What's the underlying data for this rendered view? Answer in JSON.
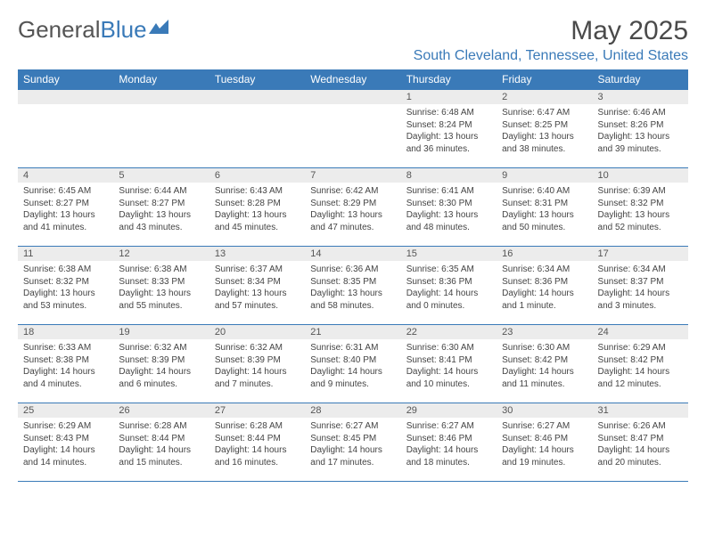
{
  "brand": {
    "part1": "General",
    "part2": "Blue"
  },
  "title": "May 2025",
  "location": "South Cleveland, Tennessee, United States",
  "colors": {
    "header_bg": "#3a7ab8",
    "header_fg": "#ffffff",
    "daynum_bg": "#ececec",
    "border": "#3a7ab8",
    "text": "#444444",
    "title": "#4a4a4a"
  },
  "weekdays": [
    "Sunday",
    "Monday",
    "Tuesday",
    "Wednesday",
    "Thursday",
    "Friday",
    "Saturday"
  ],
  "weeks": [
    [
      null,
      null,
      null,
      null,
      {
        "n": "1",
        "sr": "6:48 AM",
        "ss": "8:24 PM",
        "dl": "13 hours and 36 minutes."
      },
      {
        "n": "2",
        "sr": "6:47 AM",
        "ss": "8:25 PM",
        "dl": "13 hours and 38 minutes."
      },
      {
        "n": "3",
        "sr": "6:46 AM",
        "ss": "8:26 PM",
        "dl": "13 hours and 39 minutes."
      }
    ],
    [
      {
        "n": "4",
        "sr": "6:45 AM",
        "ss": "8:27 PM",
        "dl": "13 hours and 41 minutes."
      },
      {
        "n": "5",
        "sr": "6:44 AM",
        "ss": "8:27 PM",
        "dl": "13 hours and 43 minutes."
      },
      {
        "n": "6",
        "sr": "6:43 AM",
        "ss": "8:28 PM",
        "dl": "13 hours and 45 minutes."
      },
      {
        "n": "7",
        "sr": "6:42 AM",
        "ss": "8:29 PM",
        "dl": "13 hours and 47 minutes."
      },
      {
        "n": "8",
        "sr": "6:41 AM",
        "ss": "8:30 PM",
        "dl": "13 hours and 48 minutes."
      },
      {
        "n": "9",
        "sr": "6:40 AM",
        "ss": "8:31 PM",
        "dl": "13 hours and 50 minutes."
      },
      {
        "n": "10",
        "sr": "6:39 AM",
        "ss": "8:32 PM",
        "dl": "13 hours and 52 minutes."
      }
    ],
    [
      {
        "n": "11",
        "sr": "6:38 AM",
        "ss": "8:32 PM",
        "dl": "13 hours and 53 minutes."
      },
      {
        "n": "12",
        "sr": "6:38 AM",
        "ss": "8:33 PM",
        "dl": "13 hours and 55 minutes."
      },
      {
        "n": "13",
        "sr": "6:37 AM",
        "ss": "8:34 PM",
        "dl": "13 hours and 57 minutes."
      },
      {
        "n": "14",
        "sr": "6:36 AM",
        "ss": "8:35 PM",
        "dl": "13 hours and 58 minutes."
      },
      {
        "n": "15",
        "sr": "6:35 AM",
        "ss": "8:36 PM",
        "dl": "14 hours and 0 minutes."
      },
      {
        "n": "16",
        "sr": "6:34 AM",
        "ss": "8:36 PM",
        "dl": "14 hours and 1 minute."
      },
      {
        "n": "17",
        "sr": "6:34 AM",
        "ss": "8:37 PM",
        "dl": "14 hours and 3 minutes."
      }
    ],
    [
      {
        "n": "18",
        "sr": "6:33 AM",
        "ss": "8:38 PM",
        "dl": "14 hours and 4 minutes."
      },
      {
        "n": "19",
        "sr": "6:32 AM",
        "ss": "8:39 PM",
        "dl": "14 hours and 6 minutes."
      },
      {
        "n": "20",
        "sr": "6:32 AM",
        "ss": "8:39 PM",
        "dl": "14 hours and 7 minutes."
      },
      {
        "n": "21",
        "sr": "6:31 AM",
        "ss": "8:40 PM",
        "dl": "14 hours and 9 minutes."
      },
      {
        "n": "22",
        "sr": "6:30 AM",
        "ss": "8:41 PM",
        "dl": "14 hours and 10 minutes."
      },
      {
        "n": "23",
        "sr": "6:30 AM",
        "ss": "8:42 PM",
        "dl": "14 hours and 11 minutes."
      },
      {
        "n": "24",
        "sr": "6:29 AM",
        "ss": "8:42 PM",
        "dl": "14 hours and 12 minutes."
      }
    ],
    [
      {
        "n": "25",
        "sr": "6:29 AM",
        "ss": "8:43 PM",
        "dl": "14 hours and 14 minutes."
      },
      {
        "n": "26",
        "sr": "6:28 AM",
        "ss": "8:44 PM",
        "dl": "14 hours and 15 minutes."
      },
      {
        "n": "27",
        "sr": "6:28 AM",
        "ss": "8:44 PM",
        "dl": "14 hours and 16 minutes."
      },
      {
        "n": "28",
        "sr": "6:27 AM",
        "ss": "8:45 PM",
        "dl": "14 hours and 17 minutes."
      },
      {
        "n": "29",
        "sr": "6:27 AM",
        "ss": "8:46 PM",
        "dl": "14 hours and 18 minutes."
      },
      {
        "n": "30",
        "sr": "6:27 AM",
        "ss": "8:46 PM",
        "dl": "14 hours and 19 minutes."
      },
      {
        "n": "31",
        "sr": "6:26 AM",
        "ss": "8:47 PM",
        "dl": "14 hours and 20 minutes."
      }
    ]
  ],
  "labels": {
    "sunrise": "Sunrise: ",
    "sunset": "Sunset: ",
    "daylight": "Daylight: "
  }
}
